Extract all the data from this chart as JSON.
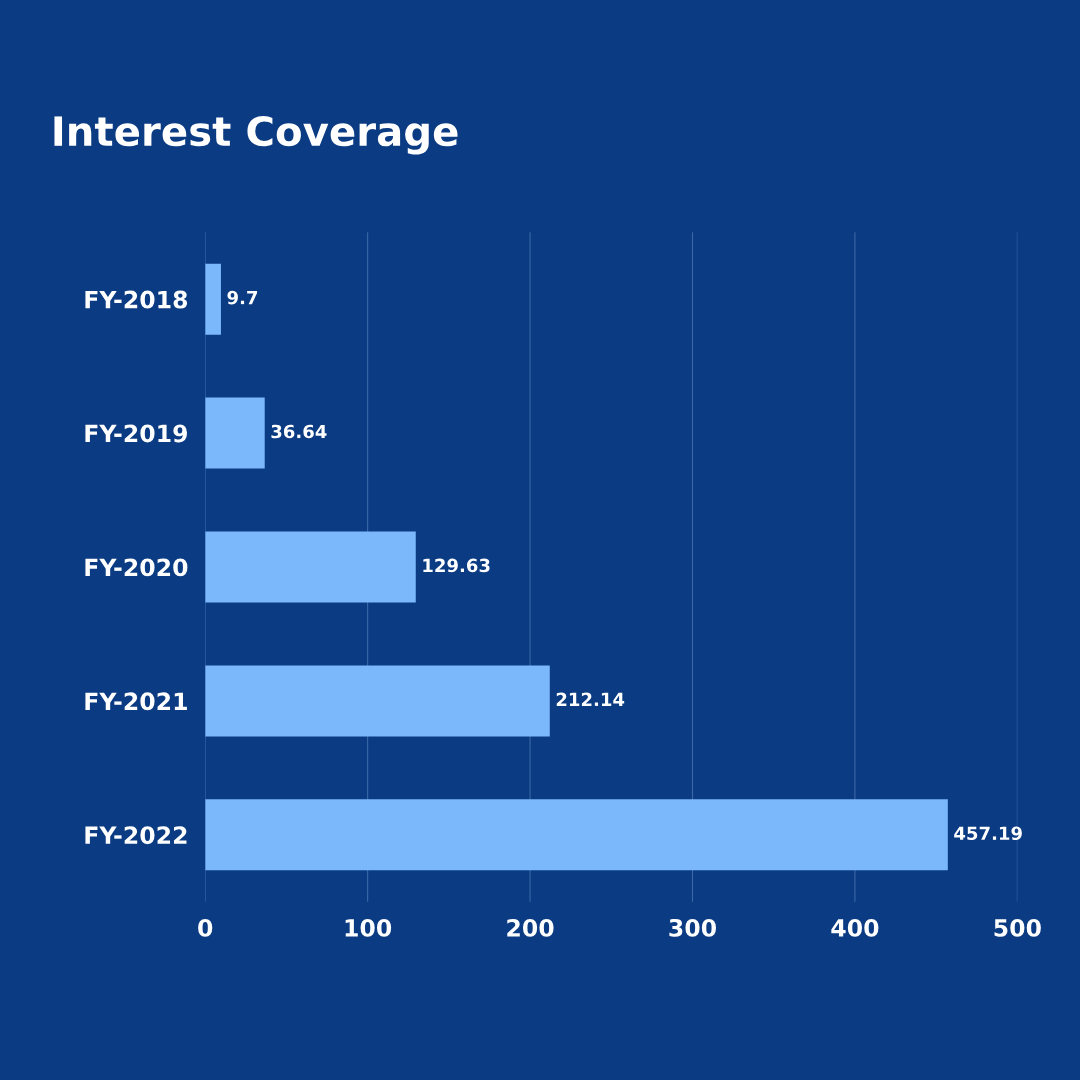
{
  "chart_data": {
    "type": "bar",
    "orientation": "horizontal",
    "title": "Interest Coverage",
    "categories": [
      "FY-2018",
      "FY-2019",
      "FY-2020",
      "FY-2021",
      "FY-2022"
    ],
    "values": [
      9.7,
      36.64,
      129.63,
      212.14,
      457.19
    ],
    "color": "#7ab8fb",
    "xlim": [
      0,
      500
    ],
    "xticks": [
      0,
      100,
      200,
      300,
      400,
      500
    ],
    "grid": "x",
    "data_labels": true
  }
}
